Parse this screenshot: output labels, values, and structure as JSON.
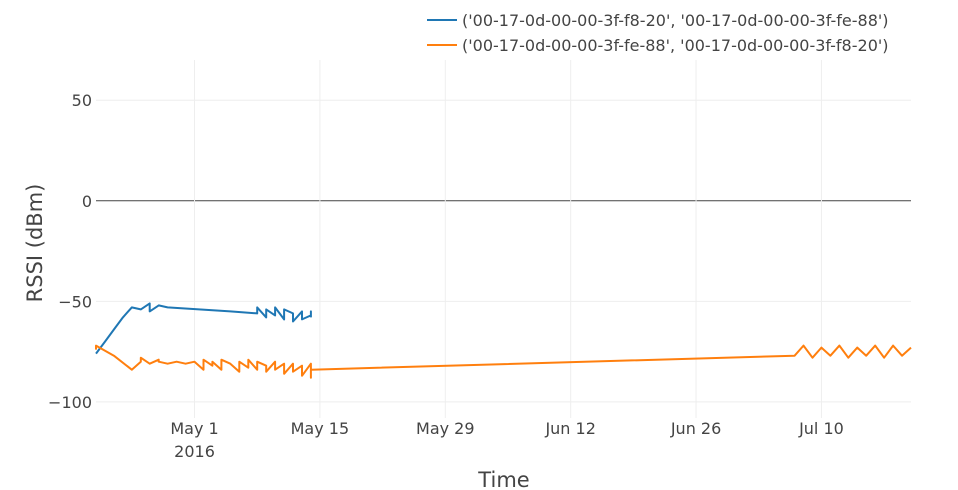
{
  "chart_data": {
    "type": "line",
    "xlabel": "Time",
    "ylabel": "RSSI (dBm)",
    "x_range": [
      "2016-04-20",
      "2016-07-20"
    ],
    "ylim": [
      -108,
      70
    ],
    "y_ticks": [
      50,
      0,
      -50,
      -100
    ],
    "y_tick_labels": [
      "50",
      "0",
      "−50",
      "−100"
    ],
    "x_ticks": [
      {
        "date": "2016-05-01",
        "label": "May 1",
        "sublabel": "2016"
      },
      {
        "date": "2016-05-15",
        "label": "May 15"
      },
      {
        "date": "2016-05-29",
        "label": "May 29"
      },
      {
        "date": "2016-06-12",
        "label": "Jun 12"
      },
      {
        "date": "2016-06-26",
        "label": "Jun 26"
      },
      {
        "date": "2016-07-10",
        "label": "Jul 10"
      }
    ],
    "grid": true,
    "zero_line": true,
    "legend_position": "top-right",
    "series": [
      {
        "name": "('00-17-0d-00-00-3f-f8-20', '00-17-0d-00-00-3f-fe-88')",
        "color": "#1f77b4",
        "points": [
          [
            "2016-04-20",
            -76
          ],
          [
            "2016-04-21",
            -70
          ],
          [
            "2016-04-22",
            -64
          ],
          [
            "2016-04-23",
            -58
          ],
          [
            "2016-04-24",
            -53
          ],
          [
            "2016-04-25",
            -54
          ],
          [
            "2016-04-26",
            -51
          ],
          [
            "2016-04-26",
            -55
          ],
          [
            "2016-04-27",
            -52
          ],
          [
            "2016-04-28",
            -53
          ],
          [
            "2016-05-05",
            -55
          ],
          [
            "2016-05-08",
            -56
          ],
          [
            "2016-05-08",
            -53
          ],
          [
            "2016-05-09",
            -58
          ],
          [
            "2016-05-09",
            -54
          ],
          [
            "2016-05-10",
            -57
          ],
          [
            "2016-05-10",
            -53
          ],
          [
            "2016-05-11",
            -59
          ],
          [
            "2016-05-11",
            -54
          ],
          [
            "2016-05-12",
            -56
          ],
          [
            "2016-05-12",
            -60
          ],
          [
            "2016-05-13",
            -55
          ],
          [
            "2016-05-13",
            -59
          ],
          [
            "2016-05-14",
            -57
          ],
          [
            "2016-05-14",
            -55
          ],
          [
            "2016-05-14",
            -58
          ]
        ]
      },
      {
        "name": "('00-17-0d-00-00-3f-fe-88', '00-17-0d-00-00-3f-f8-20')",
        "color": "#ff7f0e",
        "points": [
          [
            "2016-04-20",
            -74
          ],
          [
            "2016-04-20",
            -72
          ],
          [
            "2016-04-22",
            -77
          ],
          [
            "2016-04-24",
            -84
          ],
          [
            "2016-04-25",
            -80
          ],
          [
            "2016-04-25",
            -78
          ],
          [
            "2016-04-26",
            -81
          ],
          [
            "2016-04-27",
            -79
          ],
          [
            "2016-04-27",
            -80
          ],
          [
            "2016-04-28",
            -81
          ],
          [
            "2016-04-29",
            -80
          ],
          [
            "2016-04-30",
            -81
          ],
          [
            "2016-05-01",
            -80
          ],
          [
            "2016-05-02",
            -84
          ],
          [
            "2016-05-02",
            -79
          ],
          [
            "2016-05-03",
            -82
          ],
          [
            "2016-05-03",
            -80
          ],
          [
            "2016-05-04",
            -84
          ],
          [
            "2016-05-04",
            -79
          ],
          [
            "2016-05-05",
            -81
          ],
          [
            "2016-05-06",
            -85
          ],
          [
            "2016-05-06",
            -80
          ],
          [
            "2016-05-07",
            -83
          ],
          [
            "2016-05-07",
            -79
          ],
          [
            "2016-05-08",
            -84
          ],
          [
            "2016-05-08",
            -80
          ],
          [
            "2016-05-09",
            -82
          ],
          [
            "2016-05-09",
            -85
          ],
          [
            "2016-05-10",
            -80
          ],
          [
            "2016-05-10",
            -84
          ],
          [
            "2016-05-11",
            -81
          ],
          [
            "2016-05-11",
            -86
          ],
          [
            "2016-05-12",
            -81
          ],
          [
            "2016-05-12",
            -85
          ],
          [
            "2016-05-13",
            -82
          ],
          [
            "2016-05-13",
            -87
          ],
          [
            "2016-05-14",
            -81
          ],
          [
            "2016-05-14",
            -88
          ],
          [
            "2016-05-14",
            -84
          ],
          [
            "2016-07-07",
            -77
          ],
          [
            "2016-07-08",
            -72
          ],
          [
            "2016-07-09",
            -78
          ],
          [
            "2016-07-10",
            -73
          ],
          [
            "2016-07-11",
            -77
          ],
          [
            "2016-07-12",
            -72
          ],
          [
            "2016-07-13",
            -78
          ],
          [
            "2016-07-14",
            -73
          ],
          [
            "2016-07-15",
            -77
          ],
          [
            "2016-07-16",
            -72
          ],
          [
            "2016-07-17",
            -78
          ],
          [
            "2016-07-18",
            -72
          ],
          [
            "2016-07-19",
            -77
          ],
          [
            "2016-07-20",
            -73
          ]
        ]
      }
    ]
  }
}
